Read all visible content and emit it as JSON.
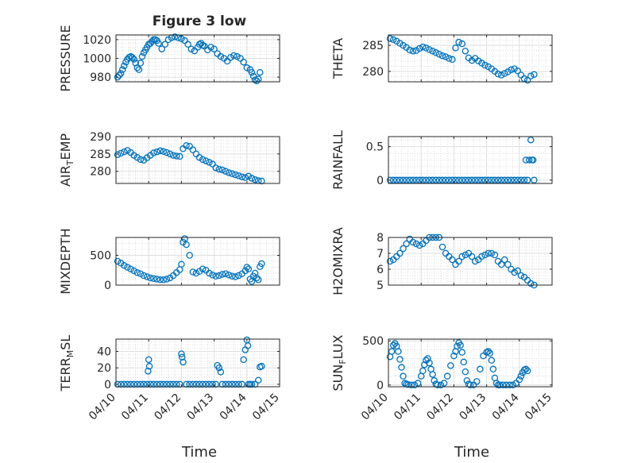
{
  "figure": {
    "title": "Figure 3 low",
    "marker_color": "#0072bd",
    "x_tick_labels": [
      "04/10",
      "04/11",
      "04/12",
      "04/13",
      "04/14",
      "04/15"
    ],
    "x_label": "Time"
  },
  "chart_data": [
    {
      "type": "scatter",
      "name": "pressure",
      "ylabel": "PRESSURE",
      "ylim": [
        975,
        1025
      ],
      "yticks": [
        980,
        1000,
        1020
      ],
      "xlim": [
        0,
        5
      ],
      "grid": true,
      "x": [
        0.05,
        0.1,
        0.15,
        0.2,
        0.25,
        0.3,
        0.35,
        0.4,
        0.45,
        0.5,
        0.55,
        0.6,
        0.65,
        0.7,
        0.75,
        0.8,
        0.85,
        0.9,
        0.95,
        1.0,
        1.05,
        1.1,
        1.15,
        1.2,
        1.25,
        1.3,
        1.4,
        1.5,
        1.6,
        1.7,
        1.8,
        1.9,
        2.0,
        2.1,
        2.2,
        2.3,
        2.4,
        2.5,
        2.55,
        2.6,
        2.65,
        2.7,
        2.8,
        2.9,
        3.0,
        3.1,
        3.2,
        3.3,
        3.4,
        3.5,
        3.6,
        3.7,
        3.8,
        3.9,
        4.0,
        4.1,
        4.15,
        4.2,
        4.25,
        4.3,
        4.35,
        4.4
      ],
      "y": [
        980,
        982,
        984,
        988,
        992,
        996,
        999,
        1001,
        1002,
        1001,
        999,
        995,
        990,
        988,
        995,
        1002,
        1006,
        1009,
        1012,
        1015,
        1016,
        1018,
        1020,
        1020,
        1019,
        1016,
        1010,
        1015,
        1020,
        1022,
        1023,
        1022,
        1021,
        1019,
        1015,
        1010,
        1008,
        1012,
        1015,
        1016,
        1014,
        1013,
        1009,
        1012,
        1010,
        1005,
        1002,
        1000,
        997,
        1001,
        1003,
        1002,
        1000,
        996,
        990,
        988,
        985,
        981,
        977,
        976,
        978,
        985
      ]
    },
    {
      "type": "scatter",
      "name": "theta",
      "ylabel": "THETA",
      "ylim": [
        278,
        287
      ],
      "yticks": [
        280,
        285
      ],
      "xlim": [
        0,
        5
      ],
      "grid": true,
      "x": [
        0.05,
        0.15,
        0.25,
        0.35,
        0.45,
        0.55,
        0.65,
        0.75,
        0.85,
        0.95,
        1.05,
        1.15,
        1.25,
        1.35,
        1.45,
        1.55,
        1.65,
        1.75,
        1.85,
        1.95,
        2.05,
        2.15,
        2.25,
        2.35,
        2.45,
        2.55,
        2.65,
        2.75,
        2.85,
        2.95,
        3.05,
        3.15,
        3.25,
        3.35,
        3.45,
        3.55,
        3.65,
        3.75,
        3.85,
        3.95,
        4.05,
        4.15,
        4.25,
        4.35,
        4.45
      ],
      "y": [
        286.3,
        286.1,
        285.8,
        285.4,
        285.0,
        284.6,
        284.1,
        283.9,
        284.0,
        284.4,
        284.7,
        284.5,
        284.2,
        283.9,
        283.6,
        283.3,
        283.0,
        282.8,
        282.5,
        282.3,
        284.5,
        285.6,
        285.3,
        283.9,
        282.6,
        282.1,
        282.5,
        282.0,
        281.6,
        281.2,
        280.9,
        280.5,
        280.0,
        279.5,
        279.3,
        279.6,
        279.9,
        280.3,
        280.5,
        280.1,
        279.3,
        278.6,
        278.3,
        279.1,
        279.4
      ]
    },
    {
      "type": "scatter",
      "name": "air_temp",
      "ylabel": "AIR",
      "ylabel_sub": "T",
      "ylabel_tail": "EMP",
      "ylim": [
        276.5,
        290
      ],
      "yticks": [
        280,
        285,
        290
      ],
      "xlim": [
        0,
        5
      ],
      "grid": true,
      "x": [
        0.05,
        0.15,
        0.25,
        0.35,
        0.45,
        0.55,
        0.65,
        0.75,
        0.85,
        0.95,
        1.05,
        1.15,
        1.25,
        1.35,
        1.45,
        1.55,
        1.65,
        1.75,
        1.85,
        1.95,
        2.05,
        2.15,
        2.25,
        2.35,
        2.45,
        2.55,
        2.65,
        2.75,
        2.85,
        2.95,
        3.05,
        3.15,
        3.25,
        3.35,
        3.45,
        3.55,
        3.65,
        3.75,
        3.85,
        3.95,
        4.05,
        4.15,
        4.25,
        4.35,
        4.45
      ],
      "y": [
        284.8,
        285.2,
        285.6,
        286.0,
        285.4,
        284.6,
        284.0,
        283.4,
        283.2,
        283.9,
        284.6,
        285.3,
        285.6,
        285.9,
        285.7,
        285.4,
        285.0,
        284.6,
        284.4,
        284.3,
        286.5,
        287.4,
        287.2,
        286.2,
        285.0,
        284.0,
        283.4,
        283.0,
        282.6,
        282.1,
        281.0,
        280.6,
        280.4,
        280.0,
        279.6,
        279.3,
        279.0,
        278.7,
        278.4,
        278.2,
        278.6,
        278.0,
        277.6,
        277.3,
        277.2
      ]
    },
    {
      "type": "scatter",
      "name": "rainfall",
      "ylabel": "RAINFALL",
      "ylim": [
        -0.05,
        0.65
      ],
      "yticks": [
        0,
        0.5
      ],
      "xlim": [
        0,
        5
      ],
      "grid": true,
      "x": [
        0.05,
        0.15,
        0.25,
        0.35,
        0.45,
        0.55,
        0.65,
        0.75,
        0.85,
        0.95,
        1.05,
        1.15,
        1.25,
        1.35,
        1.45,
        1.55,
        1.65,
        1.75,
        1.85,
        1.95,
        2.05,
        2.15,
        2.25,
        2.35,
        2.45,
        2.55,
        2.65,
        2.75,
        2.85,
        2.95,
        3.05,
        3.15,
        3.25,
        3.35,
        3.45,
        3.55,
        3.65,
        3.75,
        3.85,
        3.95,
        4.05,
        4.15,
        4.2,
        4.25,
        4.3,
        4.35,
        4.38,
        4.42,
        4.45
      ],
      "y": [
        0,
        0,
        0,
        0,
        0,
        0,
        0,
        0,
        0,
        0,
        0,
        0,
        0,
        0,
        0,
        0,
        0,
        0,
        0,
        0,
        0,
        0,
        0,
        0,
        0,
        0,
        0,
        0,
        0,
        0,
        0,
        0,
        0,
        0,
        0,
        0,
        0,
        0,
        0,
        0,
        0,
        0,
        0.3,
        0,
        0.3,
        0.6,
        0.3,
        0.3,
        0
      ]
    },
    {
      "type": "scatter",
      "name": "mixdepth",
      "ylabel": "MIXDEPTH",
      "ylim": [
        0,
        800
      ],
      "yticks": [
        0,
        500
      ],
      "xlim": [
        0,
        5
      ],
      "grid": true,
      "x": [
        0.05,
        0.15,
        0.25,
        0.35,
        0.45,
        0.55,
        0.65,
        0.75,
        0.85,
        0.95,
        1.05,
        1.15,
        1.25,
        1.35,
        1.45,
        1.55,
        1.65,
        1.75,
        1.85,
        1.95,
        2.0,
        2.05,
        2.1,
        2.15,
        2.25,
        2.35,
        2.45,
        2.55,
        2.65,
        2.75,
        2.85,
        2.95,
        3.05,
        3.15,
        3.25,
        3.35,
        3.45,
        3.55,
        3.65,
        3.75,
        3.85,
        3.95,
        4.0,
        4.05,
        4.1,
        4.15,
        4.2,
        4.25,
        4.3,
        4.35,
        4.4,
        4.45
      ],
      "y": [
        400,
        370,
        330,
        300,
        270,
        240,
        210,
        190,
        160,
        140,
        120,
        110,
        100,
        90,
        90,
        100,
        120,
        160,
        210,
        260,
        350,
        720,
        780,
        680,
        500,
        220,
        200,
        230,
        270,
        250,
        200,
        170,
        150,
        160,
        180,
        190,
        170,
        150,
        140,
        160,
        190,
        240,
        300,
        270,
        100,
        60,
        150,
        200,
        120,
        90,
        310,
        360
      ]
    },
    {
      "type": "scatter",
      "name": "h2omixra",
      "ylabel": "H2OMIXRA",
      "ylim": [
        5,
        8
      ],
      "yticks": [
        5,
        6,
        7,
        8
      ],
      "xlim": [
        0,
        5
      ],
      "grid": true,
      "x": [
        0.05,
        0.15,
        0.25,
        0.35,
        0.45,
        0.55,
        0.65,
        0.75,
        0.85,
        0.95,
        1.05,
        1.15,
        1.25,
        1.35,
        1.45,
        1.55,
        1.65,
        1.75,
        1.85,
        1.95,
        2.05,
        2.15,
        2.25,
        2.35,
        2.45,
        2.55,
        2.65,
        2.75,
        2.85,
        2.95,
        3.05,
        3.15,
        3.25,
        3.35,
        3.45,
        3.55,
        3.65,
        3.75,
        3.85,
        3.95,
        4.05,
        4.15,
        4.25,
        4.35,
        4.45
      ],
      "y": [
        6.5,
        6.6,
        6.8,
        7.0,
        7.3,
        7.6,
        7.9,
        7.7,
        7.6,
        7.5,
        7.6,
        7.8,
        8.0,
        8.0,
        8.0,
        8.0,
        7.4,
        7.0,
        6.8,
        6.6,
        6.3,
        6.5,
        6.8,
        6.9,
        7.0,
        6.8,
        6.5,
        6.6,
        6.8,
        6.9,
        7.0,
        7.0,
        6.9,
        6.5,
        6.3,
        6.6,
        6.3,
        6.0,
        5.8,
        5.9,
        5.6,
        5.5,
        5.3,
        5.1,
        5.0
      ]
    },
    {
      "type": "scatter",
      "name": "terr_msl",
      "ylabel": "TERR",
      "ylabel_sub": "M",
      "ylabel_tail": "SL",
      "ylim": [
        -3,
        55
      ],
      "yticks": [
        0,
        20,
        40
      ],
      "xlim": [
        0,
        5
      ],
      "grid": true,
      "x": [
        0.05,
        0.15,
        0.25,
        0.35,
        0.45,
        0.55,
        0.65,
        0.75,
        0.85,
        0.95,
        0.98,
        1.0,
        1.02,
        1.05,
        1.15,
        1.25,
        1.35,
        1.45,
        1.55,
        1.65,
        1.75,
        1.85,
        1.95,
        2.0,
        2.02,
        2.05,
        2.15,
        2.25,
        2.35,
        2.45,
        2.55,
        2.65,
        2.75,
        2.85,
        2.95,
        3.05,
        3.1,
        3.15,
        3.2,
        3.25,
        3.35,
        3.45,
        3.55,
        3.65,
        3.75,
        3.85,
        3.9,
        3.95,
        4.0,
        4.03,
        4.05,
        4.1,
        4.15,
        4.25,
        4.35,
        4.4,
        4.45
      ],
      "y": [
        0,
        0,
        0,
        0,
        0,
        0,
        0,
        0,
        0,
        0,
        16,
        30,
        22,
        0,
        0,
        0,
        0,
        0,
        0,
        0,
        0,
        0,
        0,
        37,
        33,
        27,
        0,
        0,
        0,
        0,
        0,
        0,
        0,
        0,
        0,
        0,
        23,
        20,
        15,
        0,
        0,
        0,
        0,
        0,
        0,
        0,
        30,
        42,
        54,
        47,
        0,
        0,
        0,
        0,
        5,
        21,
        22
      ]
    },
    {
      "type": "scatter",
      "name": "sun_flux",
      "ylabel": "SUN",
      "ylabel_sub": "F",
      "ylabel_tail": "LUX",
      "ylim": [
        -20,
        520
      ],
      "yticks": [
        0,
        500
      ],
      "xlim": [
        0,
        5
      ],
      "grid": true,
      "x": [
        0.05,
        0.1,
        0.15,
        0.2,
        0.25,
        0.3,
        0.35,
        0.4,
        0.45,
        0.5,
        0.55,
        0.6,
        0.7,
        0.8,
        0.9,
        1.0,
        1.05,
        1.1,
        1.15,
        1.2,
        1.25,
        1.3,
        1.35,
        1.4,
        1.45,
        1.5,
        1.6,
        1.7,
        1.8,
        1.9,
        2.0,
        2.05,
        2.1,
        2.15,
        2.2,
        2.25,
        2.3,
        2.35,
        2.4,
        2.45,
        2.5,
        2.6,
        2.7,
        2.8,
        2.9,
        3.0,
        3.05,
        3.1,
        3.15,
        3.2,
        3.25,
        3.3,
        3.35,
        3.4,
        3.5,
        3.6,
        3.7,
        3.8,
        3.9,
        4.0,
        4.05,
        4.1,
        4.15,
        4.2,
        4.25
      ],
      "y": [
        320,
        380,
        450,
        470,
        440,
        380,
        290,
        200,
        100,
        20,
        10,
        5,
        0,
        0,
        20,
        100,
        160,
        230,
        280,
        300,
        250,
        180,
        120,
        50,
        10,
        0,
        0,
        20,
        100,
        220,
        330,
        380,
        440,
        480,
        450,
        370,
        260,
        150,
        50,
        10,
        0,
        0,
        40,
        180,
        330,
        370,
        380,
        360,
        280,
        180,
        80,
        20,
        0,
        0,
        0,
        0,
        0,
        0,
        20,
        60,
        100,
        140,
        170,
        180,
        160
      ]
    }
  ]
}
